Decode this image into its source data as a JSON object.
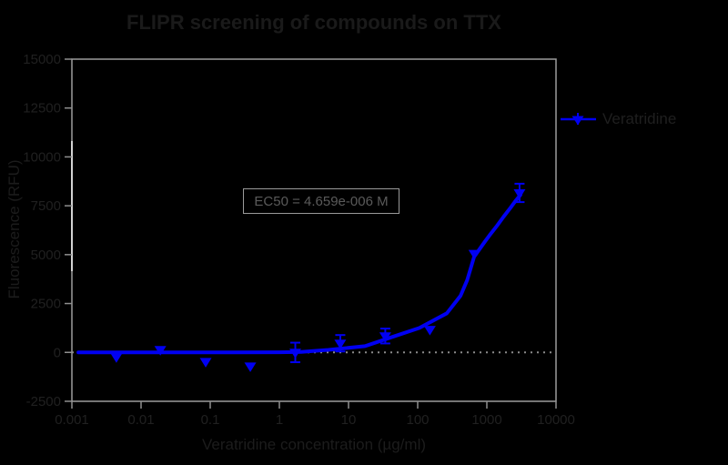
{
  "figure": {
    "background": "#000000",
    "frame_color": "#9c9c9c",
    "tick_color": "#8f8f8f",
    "baseline_color": "#8a8a8a",
    "series_color": "#0000f2",
    "faint_text_color": "#1c1c1c",
    "box_border_color": "#9a9a9a"
  },
  "chart_data": {
    "type": "scatter",
    "title": "FLIPR screening of compounds on TTX",
    "xlabel": "Veratridine concentration (µg/ml)",
    "ylabel": "Fluorescence (RFU)",
    "x_scale": "log",
    "x_tick_labels": [
      "0.001",
      "0.01",
      "0.1",
      "1",
      "10",
      "100",
      "1000",
      "10000"
    ],
    "y_ticks": [
      15000,
      12500,
      10000,
      7500,
      5000,
      2500,
      0,
      -2500
    ],
    "ylim": [
      -2600,
      15000
    ],
    "baseline": 0,
    "grid": false,
    "legend_position": "right",
    "annotation": "EC50 = 4.659e-006 M",
    "legend": {
      "label": "Veratridine"
    },
    "series": [
      {
        "name": "Veratridine",
        "color": "#0000f2",
        "marker": "triangle-down",
        "x": [
          0.0044,
          0.019,
          0.086,
          0.38,
          1.7,
          7.6,
          34,
          150,
          660,
          2970
        ],
        "y": [
          -230,
          140,
          -470,
          -700,
          0,
          470,
          840,
          1170,
          5060,
          8160
        ],
        "y_err": [
          0,
          0,
          0,
          0,
          500,
          420,
          380,
          0,
          0,
          470
        ]
      }
    ],
    "fit_curve": [
      [
        0.00124,
        0
      ],
      [
        0.01,
        0
      ],
      [
        0.1,
        0
      ],
      [
        1,
        10
      ],
      [
        2.07,
        30
      ],
      [
        5.1,
        130
      ],
      [
        17.3,
        320
      ],
      [
        42.8,
        790
      ],
      [
        106,
        1250
      ],
      [
        264,
        2000
      ],
      [
        417,
        2900
      ],
      [
        520,
        3700
      ],
      [
        655,
        4890
      ],
      [
        941,
        5680
      ],
      [
        1100,
        6000
      ],
      [
        1396,
        6470
      ],
      [
        1750,
        6950
      ],
      [
        2200,
        7400
      ],
      [
        2600,
        7750
      ],
      [
        3070,
        8060
      ]
    ]
  }
}
